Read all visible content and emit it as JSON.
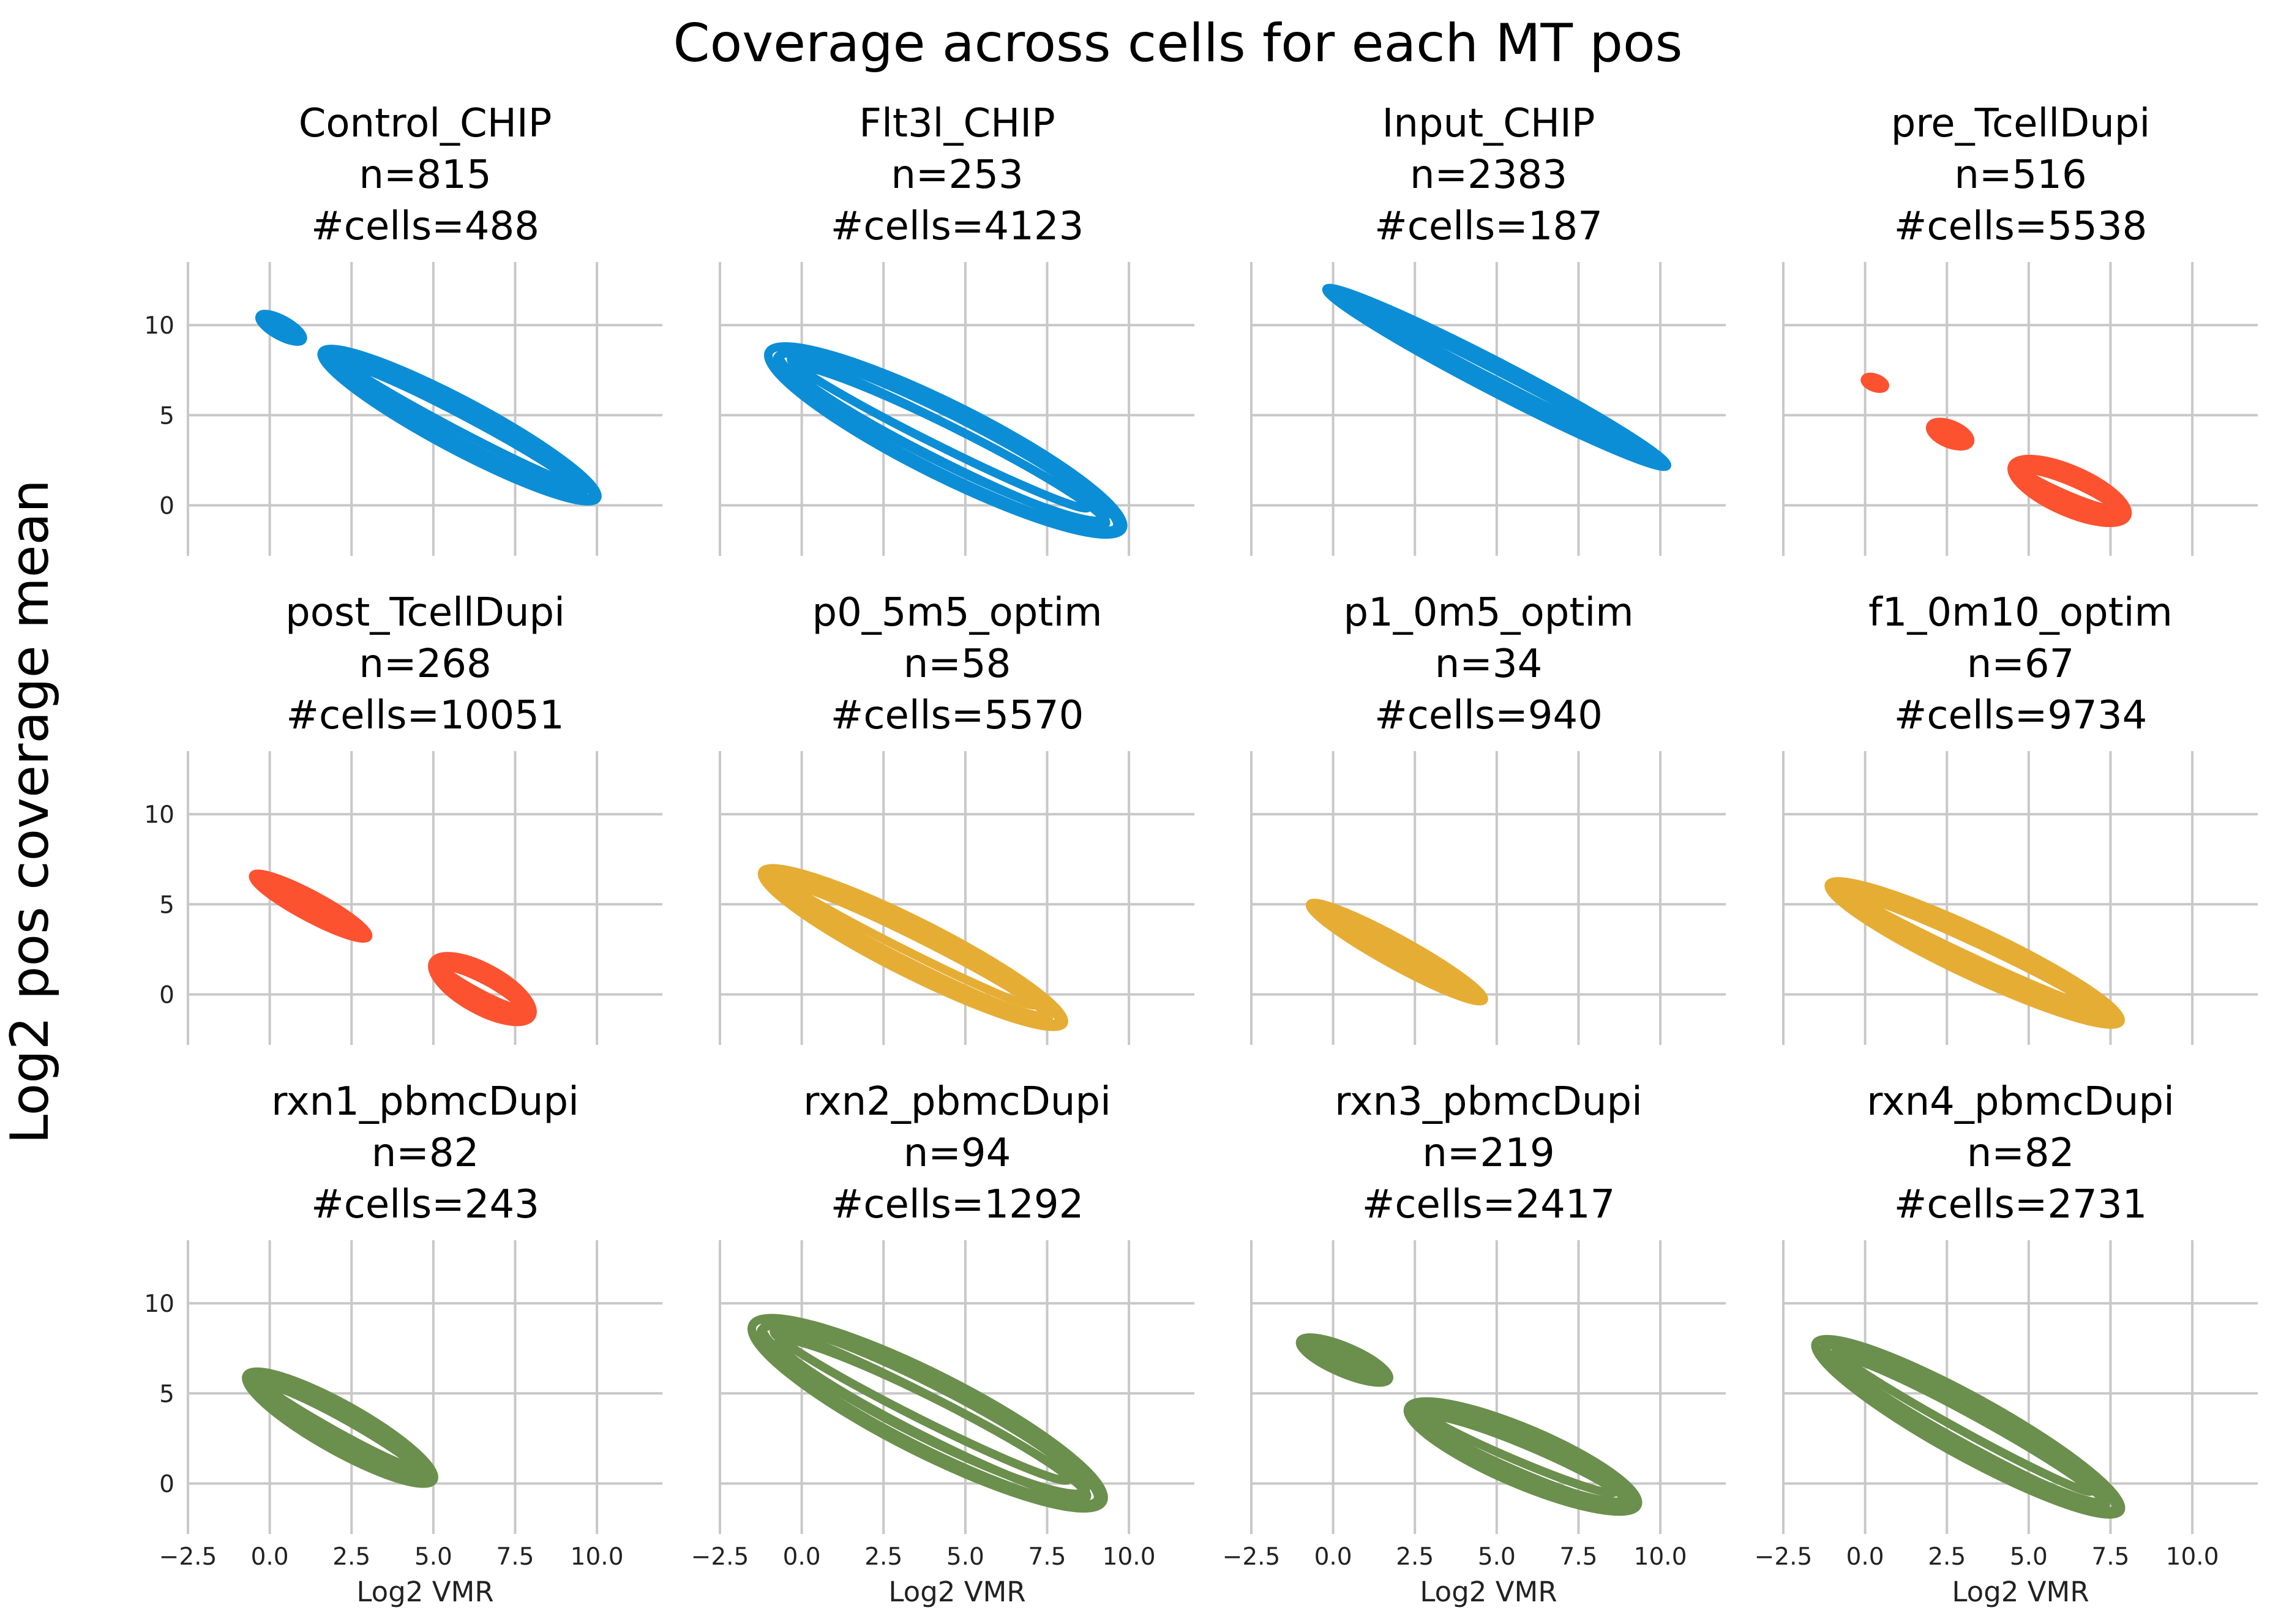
{
  "figure": {
    "title": "Coverage across cells for each MT pos",
    "ylabel": "Log2 pos coverage mean",
    "xlabel": "Log2 VMR"
  },
  "axes": {
    "xticks": [
      -2.5,
      0.0,
      2.5,
      5.0,
      7.5,
      10.0
    ],
    "xtick_labels": [
      "−2.5",
      "0.0",
      "2.5",
      "5.0",
      "7.5",
      "10.0"
    ],
    "yticks": [
      0,
      5,
      10
    ],
    "ytick_labels": [
      "0",
      "5",
      "10"
    ],
    "xlim": [
      -2.5,
      12
    ],
    "ylim": [
      -2.8,
      13.5
    ],
    "grid": true
  },
  "colors": {
    "blue": "#0b8ed6",
    "red": "#fc5230",
    "gold": "#e6ad34",
    "green": "#6b8f4c",
    "grid": "#c8c8c8"
  },
  "chart_data": {
    "type": "scatter",
    "panels": [
      {
        "name": "Control_CHIP",
        "n": "n=815",
        "cells": "#cells=488",
        "color": "blue",
        "clusters": [
          {
            "x": [
              -0.3,
              1.0
            ],
            "y": [
              10.5,
              9.2
            ],
            "w": 0.5
          },
          {
            "x": [
              1.6,
              10.0
            ],
            "y": [
              8.5,
              0.4
            ],
            "w": 1.5
          }
        ]
      },
      {
        "name": "Flt3l_CHIP",
        "n": "n=253",
        "cells": "#cells=4123",
        "color": "blue",
        "clusters": [
          {
            "x": [
              -1.0,
              9.8
            ],
            "y": [
              8.5,
              -1.3
            ],
            "w": 2.2
          }
        ]
      },
      {
        "name": "Input_CHIP",
        "n": "n=2383",
        "cells": "#cells=187",
        "color": "blue",
        "clusters": [
          {
            "x": [
              -0.2,
              10.2
            ],
            "y": [
              12.0,
              2.2
            ],
            "w": 0.9
          }
        ]
      },
      {
        "name": "pre_TcellDupi",
        "n": "n=516",
        "cells": "#cells=5538",
        "color": "red",
        "clusters": [
          {
            "x": [
              0.0,
              0.6
            ],
            "y": [
              7.0,
              6.6
            ],
            "w": 0.3
          },
          {
            "x": [
              2.0,
              3.2
            ],
            "y": [
              4.4,
              3.5
            ],
            "w": 0.6
          },
          {
            "x": [
              4.5,
              8.0
            ],
            "y": [
              2.2,
              -0.6
            ],
            "w": 1.3
          }
        ]
      },
      {
        "name": "post_TcellDupi",
        "n": "n=268",
        "cells": "#cells=10051",
        "color": "red",
        "clusters": [
          {
            "x": [
              -0.5,
              3.0
            ],
            "y": [
              6.6,
              3.2
            ],
            "w": 0.7
          },
          {
            "x": [
              5.0,
              8.0
            ],
            "y": [
              1.8,
              -1.2
            ],
            "w": 1.3
          }
        ]
      },
      {
        "name": "p0_5m5_optim",
        "n": "n=58",
        "cells": "#cells=5570",
        "color": "gold",
        "clusters": [
          {
            "x": [
              -1.2,
              8.0
            ],
            "y": [
              6.8,
              -1.6
            ],
            "w": 1.6
          }
        ]
      },
      {
        "name": "p1_0m5_optim",
        "n": "n=34",
        "cells": "#cells=940",
        "color": "gold",
        "clusters": [
          {
            "x": [
              -0.7,
              4.6
            ],
            "y": [
              5.0,
              -0.3
            ],
            "w": 0.8
          }
        ]
      },
      {
        "name": "f1_0m10_optim",
        "n": "n=67",
        "cells": "#cells=9734",
        "color": "gold",
        "clusters": [
          {
            "x": [
              -1.1,
              7.8
            ],
            "y": [
              6.1,
              -1.5
            ],
            "w": 1.4
          }
        ]
      },
      {
        "name": "rxn1_pbmcDupi",
        "n": "n=82",
        "cells": "#cells=243",
        "color": "green",
        "clusters": [
          {
            "x": [
              -0.7,
              5.0
            ],
            "y": [
              6.0,
              0.2
            ],
            "w": 1.4
          }
        ]
      },
      {
        "name": "rxn2_pbmcDupi",
        "n": "n=94",
        "cells": "#cells=1292",
        "color": "green",
        "clusters": [
          {
            "x": [
              -1.5,
              9.2
            ],
            "y": [
              8.8,
              -1.0
            ],
            "w": 2.4
          }
        ]
      },
      {
        "name": "rxn3_pbmcDupi",
        "n": "n=219",
        "cells": "#cells=2417",
        "color": "green",
        "clusters": [
          {
            "x": [
              -1.0,
              1.7
            ],
            "y": [
              7.9,
              5.8
            ],
            "w": 0.8
          },
          {
            "x": [
              2.3,
              9.3
            ],
            "y": [
              4.2,
              -1.2
            ],
            "w": 1.7
          }
        ]
      },
      {
        "name": "rxn4_pbmcDupi",
        "n": "n=82",
        "cells": "#cells=2731",
        "color": "green",
        "clusters": [
          {
            "x": [
              -1.5,
              7.8
            ],
            "y": [
              7.8,
              -1.5
            ],
            "w": 1.8
          }
        ]
      }
    ]
  }
}
